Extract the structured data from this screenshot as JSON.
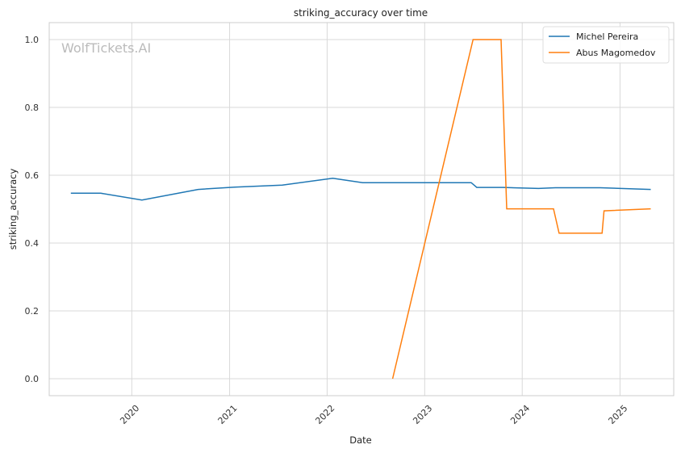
{
  "chart_data": {
    "type": "line",
    "title": "striking_accuracy over time",
    "xlabel": "Date",
    "ylabel": "striking_accuracy",
    "watermark": "WolfTickets.AI",
    "xlim": [
      "2019-02-26",
      "2025-07-21"
    ],
    "ylim": [
      -0.05,
      1.05
    ],
    "x_ticks": [
      {
        "date": "2020-01-01",
        "label": "2020"
      },
      {
        "date": "2021-01-01",
        "label": "2021"
      },
      {
        "date": "2022-01-01",
        "label": "2022"
      },
      {
        "date": "2023-01-01",
        "label": "2023"
      },
      {
        "date": "2024-01-01",
        "label": "2024"
      },
      {
        "date": "2025-01-01",
        "label": "2025"
      }
    ],
    "y_ticks": [
      {
        "value": 0.0,
        "label": "0.0"
      },
      {
        "value": 0.2,
        "label": "0.2"
      },
      {
        "value": 0.4,
        "label": "0.4"
      },
      {
        "value": 0.6,
        "label": "0.6"
      },
      {
        "value": 0.8,
        "label": "0.8"
      },
      {
        "value": 1.0,
        "label": "1.0"
      }
    ],
    "grid": true,
    "legend_position": "top-right",
    "series": [
      {
        "name": "Michel Pereira",
        "color": "#1f77b4",
        "points": [
          {
            "x": "2019-05-18",
            "y": 0.547
          },
          {
            "x": "2019-09-07",
            "y": 0.547
          },
          {
            "x": "2020-02-08",
            "y": 0.527
          },
          {
            "x": "2020-09-05",
            "y": 0.558
          },
          {
            "x": "2021-01-20",
            "y": 0.565
          },
          {
            "x": "2021-07-17",
            "y": 0.571
          },
          {
            "x": "2022-01-22",
            "y": 0.591
          },
          {
            "x": "2022-05-14",
            "y": 0.578
          },
          {
            "x": "2023-06-24",
            "y": 0.578
          },
          {
            "x": "2023-07-15",
            "y": 0.564
          },
          {
            "x": "2023-10-21",
            "y": 0.564
          },
          {
            "x": "2024-03-02",
            "y": 0.561
          },
          {
            "x": "2024-05-04",
            "y": 0.563
          },
          {
            "x": "2024-10-19",
            "y": 0.563
          },
          {
            "x": "2025-04-26",
            "y": 0.558
          }
        ]
      },
      {
        "name": "Abus Magomedov",
        "color": "#ff7f0e",
        "points": [
          {
            "x": "2022-09-03",
            "y": 0.0
          },
          {
            "x": "2023-07-01",
            "y": 1.0
          },
          {
            "x": "2023-10-14",
            "y": 1.0
          },
          {
            "x": "2023-11-04",
            "y": 0.501
          },
          {
            "x": "2024-04-27",
            "y": 0.501
          },
          {
            "x": "2024-05-18",
            "y": 0.429
          },
          {
            "x": "2024-10-26",
            "y": 0.429
          },
          {
            "x": "2024-11-02",
            "y": 0.495
          },
          {
            "x": "2025-04-26",
            "y": 0.501
          }
        ]
      }
    ]
  }
}
